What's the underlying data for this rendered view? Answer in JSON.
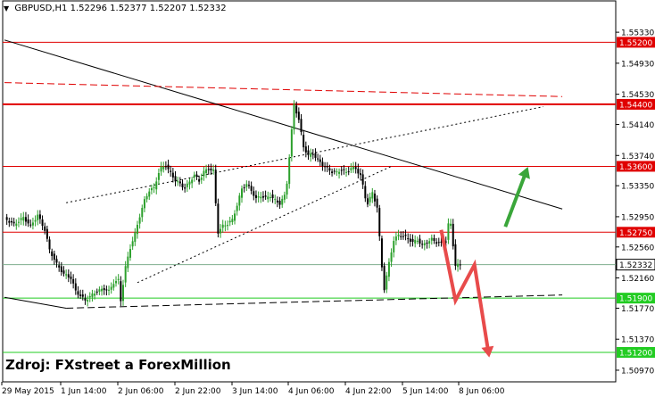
{
  "header": {
    "symbol": "GBPUSD,H1",
    "open": "1.52296",
    "high": "1.52377",
    "low": "1.52207",
    "close": "1.52332",
    "dropdown_icon": "triangle-down-icon"
  },
  "source_text": "Zdroj: FXstreet a ForexMillion",
  "colors": {
    "bull": "#2ca02c",
    "bear": "#000000",
    "resistance": "#e00000",
    "support": "#22cc22",
    "current_price_line": "#7fae8e",
    "arrow_up": "#3aa63a",
    "arrow_down": "#e84b4b"
  },
  "chart_data": {
    "type": "candlestick",
    "symbol": "GBPUSD",
    "timeframe": "H1",
    "price_axis": {
      "ylim": [
        1.5082,
        1.5555
      ],
      "tick_labels": [
        "1.55330",
        "1.54930",
        "1.54530",
        "1.54140",
        "1.53740",
        "1.53350",
        "1.52950",
        "1.52560",
        "1.52160",
        "1.51770",
        "1.51370",
        "1.50970"
      ]
    },
    "time_axis": {
      "tick_labels": [
        "29 May 2015",
        "1 Jun 14:00",
        "2 Jun 06:00",
        "2 Jun 22:00",
        "3 Jun 14:00",
        "4 Jun 06:00",
        "4 Jun 22:00",
        "5 Jun 14:00",
        "8 Jun 06:00"
      ]
    },
    "horizontal_levels": [
      {
        "label": "1.55200",
        "price": 1.552,
        "kind": "resistance"
      },
      {
        "label": "1.54400",
        "price": 1.544,
        "kind": "resistance"
      },
      {
        "label": "1.53600",
        "price": 1.536,
        "kind": "resistance"
      },
      {
        "label": "1.52750",
        "price": 1.5275,
        "kind": "resistance"
      },
      {
        "label": "1.51900",
        "price": 1.519,
        "kind": "support"
      },
      {
        "label": "1.51200",
        "price": 1.512,
        "kind": "support"
      }
    ],
    "current_price": {
      "label": "1.52332",
      "price": 1.52332
    },
    "close_path": [
      [
        0,
        1.5293
      ],
      [
        4,
        1.5285
      ],
      [
        8,
        1.5294
      ],
      [
        11,
        1.5283
      ],
      [
        14,
        1.5297
      ],
      [
        17,
        1.5278
      ],
      [
        19,
        1.5252
      ],
      [
        22,
        1.5234
      ],
      [
        25,
        1.5221
      ],
      [
        28,
        1.5216
      ],
      [
        30,
        1.5199
      ],
      [
        32,
        1.5193
      ],
      [
        34,
        1.5187
      ],
      [
        36,
        1.5192
      ],
      [
        39,
        1.5199
      ],
      [
        42,
        1.5202
      ],
      [
        44,
        1.5199
      ],
      [
        46,
        1.521
      ],
      [
        48,
        1.5213
      ],
      [
        49,
        1.5187
      ],
      [
        51,
        1.523
      ],
      [
        53,
        1.5255
      ],
      [
        55,
        1.5273
      ],
      [
        57,
        1.5296
      ],
      [
        59,
        1.5316
      ],
      [
        61,
        1.5329
      ],
      [
        63,
        1.5332
      ],
      [
        65,
        1.5352
      ],
      [
        66,
        1.5358
      ],
      [
        68,
        1.5361
      ],
      [
        70,
        1.5351
      ],
      [
        72,
        1.5342
      ],
      [
        74,
        1.5337
      ],
      [
        76,
        1.5332
      ],
      [
        78,
        1.534
      ],
      [
        80,
        1.5349
      ],
      [
        82,
        1.5341
      ],
      [
        84,
        1.5353
      ],
      [
        86,
        1.5357
      ],
      [
        88,
        1.5354
      ],
      [
        89,
        1.5312
      ],
      [
        90,
        1.5275
      ],
      [
        92,
        1.5283
      ],
      [
        94,
        1.5286
      ],
      [
        96,
        1.5291
      ],
      [
        98,
        1.531
      ],
      [
        100,
        1.5331
      ],
      [
        102,
        1.5337
      ],
      [
        104,
        1.5329
      ],
      [
        106,
        1.5318
      ],
      [
        108,
        1.5322
      ],
      [
        110,
        1.5319
      ],
      [
        112,
        1.5322
      ],
      [
        114,
        1.5316
      ],
      [
        116,
        1.5312
      ],
      [
        118,
        1.5322
      ],
      [
        119,
        1.5339
      ],
      [
        121,
        1.5406
      ],
      [
        122,
        1.544
      ],
      [
        124,
        1.542
      ],
      [
        126,
        1.5385
      ],
      [
        128,
        1.5374
      ],
      [
        130,
        1.5376
      ],
      [
        132,
        1.5368
      ],
      [
        134,
        1.5362
      ],
      [
        136,
        1.5357
      ],
      [
        138,
        1.5353
      ],
      [
        140,
        1.5352
      ],
      [
        142,
        1.5356
      ],
      [
        144,
        1.5352
      ],
      [
        146,
        1.5358
      ],
      [
        148,
        1.5357
      ],
      [
        150,
        1.5348
      ],
      [
        151,
        1.5335
      ],
      [
        152,
        1.532
      ],
      [
        153,
        1.5312
      ],
      [
        155,
        1.5326
      ],
      [
        157,
        1.5307
      ],
      [
        158,
        1.5268
      ],
      [
        159,
        1.523
      ],
      [
        160,
        1.5202
      ],
      [
        162,
        1.5235
      ],
      [
        164,
        1.5265
      ],
      [
        166,
        1.5271
      ],
      [
        168,
        1.527
      ],
      [
        170,
        1.5267
      ],
      [
        172,
        1.5262
      ],
      [
        174,
        1.5265
      ],
      [
        176,
        1.5258
      ],
      [
        178,
        1.5262
      ],
      [
        180,
        1.5266
      ],
      [
        182,
        1.5262
      ],
      [
        184,
        1.5261
      ],
      [
        186,
        1.5264
      ],
      [
        187,
        1.5285
      ],
      [
        188,
        1.5285
      ],
      [
        190,
        1.5232
      ],
      [
        192,
        1.5233
      ]
    ],
    "trendlines": [
      {
        "name": "descending-resistance",
        "style": "solid",
        "from": [
          0,
          1.5523
        ],
        "to": [
          235,
          1.5305
        ]
      },
      {
        "name": "support-line",
        "style": "solid",
        "from": [
          0,
          1.5191
        ],
        "to": [
          26,
          1.5177
        ]
      },
      {
        "name": "support-line-extension",
        "style": "dashed",
        "from": [
          26,
          1.5177
        ],
        "to": [
          235,
          1.5194
        ]
      },
      {
        "name": "channel-top",
        "style": "dotted",
        "from": [
          26,
          1.5313
        ],
        "to": [
          227,
          1.5437
        ]
      },
      {
        "name": "channel-bottom",
        "style": "dotted",
        "from": [
          56,
          1.521
        ],
        "to": [
          163,
          1.536
        ]
      },
      {
        "name": "dashed-resistance",
        "style": "dashed",
        "from": [
          0,
          1.5468
        ],
        "to": [
          235,
          1.545
        ]
      }
    ],
    "forecast_arrows": [
      {
        "name": "bullish-scenario",
        "path": [
          [
            211,
            1.5282
          ],
          [
            220,
            1.5355
          ]
        ]
      },
      {
        "name": "bearish-scenario",
        "path": [
          [
            184,
            1.5278
          ],
          [
            190,
            1.5187
          ],
          [
            198,
            1.5233
          ],
          [
            204,
            1.5118
          ]
        ]
      }
    ],
    "grid": false,
    "legend": "none"
  }
}
